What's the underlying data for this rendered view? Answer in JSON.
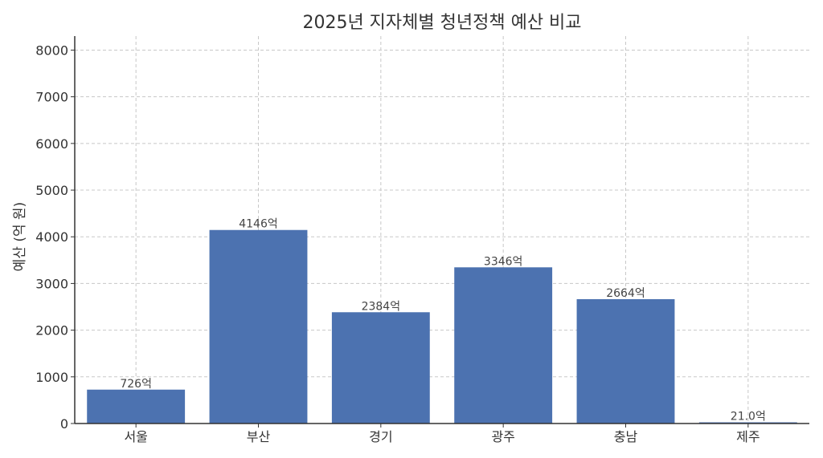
{
  "chart_data": {
    "type": "bar",
    "title": "2025년 지자체별 청년정책 예산 비교",
    "xlabel": "",
    "ylabel": "예산 (억 원)",
    "categories": [
      "서울",
      "부산",
      "경기",
      "광주",
      "충남",
      "제주"
    ],
    "values": [
      726,
      4146,
      2384,
      3346,
      2664,
      21.0
    ],
    "data_labels": [
      "726억",
      "4146억",
      "2384억",
      "3346억",
      "2664억",
      "21.0억"
    ],
    "ylim": [
      0,
      8300
    ],
    "yticks": [
      0,
      1000,
      2000,
      3000,
      4000,
      5000,
      6000,
      7000,
      8000
    ],
    "ytick_labels": [
      "0",
      "1000",
      "2000",
      "3000",
      "4000",
      "5000",
      "6000",
      "7000",
      "8000"
    ],
    "grid": true,
    "bar_color": "#4c72b0"
  }
}
